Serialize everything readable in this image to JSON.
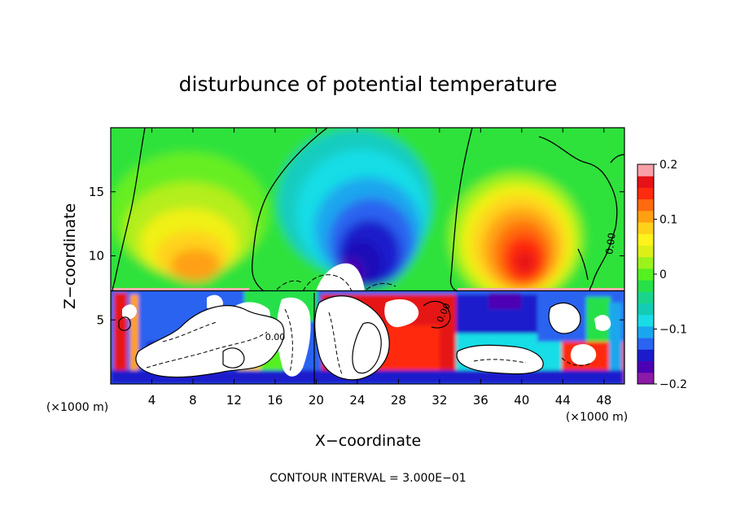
{
  "chart_data": {
    "type": "heatmap",
    "title": "disturbunce of potential temperature",
    "xlabel": "X−coordinate",
    "ylabel": "Z−coordinate",
    "x_unit_label": "(×1000 m)",
    "x_unit_label_right": "(×1000 m)",
    "xlim": [
      0,
      50
    ],
    "ylim": [
      0,
      20
    ],
    "x_ticks": [
      4,
      8,
      12,
      16,
      20,
      24,
      28,
      32,
      36,
      40,
      44,
      48
    ],
    "x_tick_labels": [
      "4",
      "8",
      "12",
      "16",
      "20",
      "24",
      "28",
      "32",
      "36",
      "40",
      "44",
      "48"
    ],
    "y_ticks": [
      5,
      10,
      15
    ],
    "y_tick_labels": [
      "5",
      "10",
      "15"
    ],
    "colorbar": {
      "range": [
        -0.2,
        0.2
      ],
      "ticks": [
        0.2,
        0.1,
        0,
        -0.1,
        -0.2
      ],
      "tick_labels": [
        "0.2",
        "0.1",
        "0",
        "−0.1",
        "−0.2"
      ],
      "colors": [
        "#8c1aa8",
        "#4d00b3",
        "#1b1bcc",
        "#2a64f0",
        "#1aa6ee",
        "#18dde6",
        "#14ccb4",
        "#1ad48c",
        "#28e048",
        "#55f020",
        "#9cf21c",
        "#dcf018",
        "#fff31c",
        "#ffd21a",
        "#ffa012",
        "#ff6a0e",
        "#ff2a10",
        "#e61218",
        "#f8a0a8"
      ]
    },
    "contour_labels": [
      "0.00",
      "0.00",
      "0.00"
    ],
    "annotation": "CONTOUR INTERVAL = 3.000E−01",
    "grid": false
  }
}
